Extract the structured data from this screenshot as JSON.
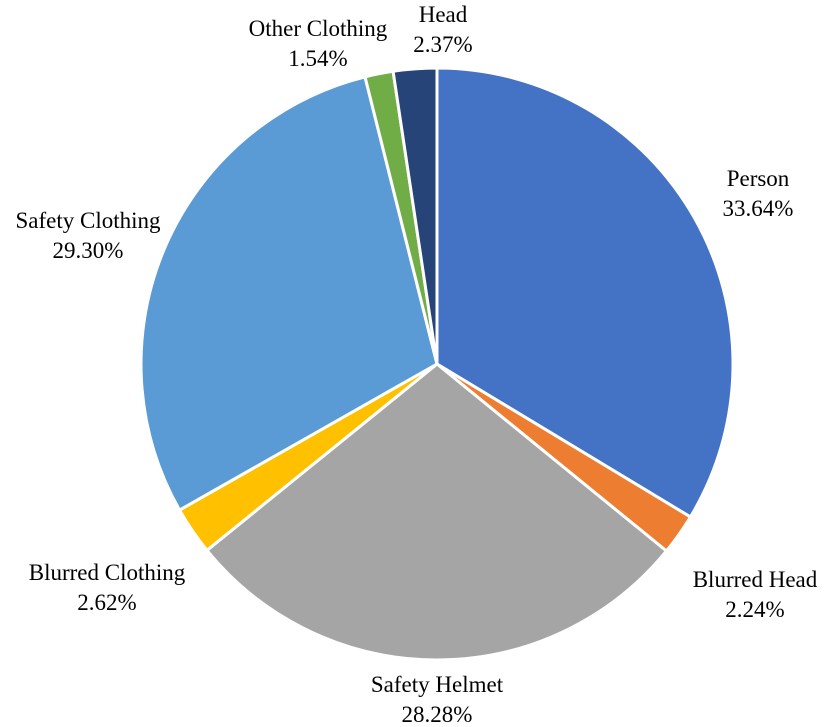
{
  "chart_data": {
    "type": "pie",
    "title": "",
    "start_angle_deg": 0,
    "direction": "clockwise",
    "slices": [
      {
        "label": "Person",
        "value": 33.64,
        "value_label": "33.64%",
        "color": "#4472C4"
      },
      {
        "label": "Blurred Head",
        "value": 2.24,
        "value_label": "2.24%",
        "color": "#ED7D31"
      },
      {
        "label": "Safety Helmet",
        "value": 28.28,
        "value_label": "28.28%",
        "color": "#A5A5A5"
      },
      {
        "label": "Blurred Clothing",
        "value": 2.62,
        "value_label": "2.62%",
        "color": "#FFC000"
      },
      {
        "label": "Safety Clothing",
        "value": 29.3,
        "value_label": "29.30%",
        "color": "#5B9BD5"
      },
      {
        "label": "Other Clothing",
        "value": 1.54,
        "value_label": "1.54%",
        "color": "#70AD47"
      },
      {
        "label": "Head",
        "value": 2.37,
        "value_label": "2.37%",
        "color": "#264478"
      }
    ],
    "legend": "none",
    "labels": "outside, category name and percentage"
  }
}
